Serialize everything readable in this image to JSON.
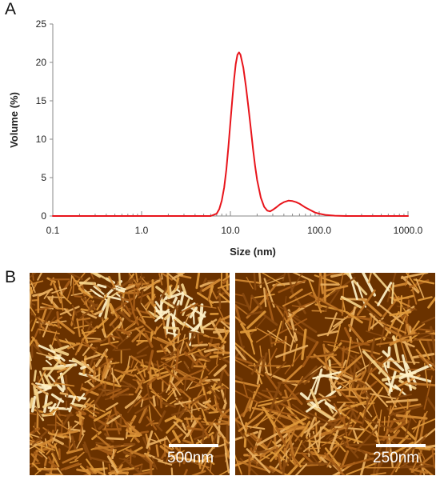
{
  "figure": {
    "panel_a_letter": "A",
    "panel_b_letter": "B"
  },
  "chart_data": {
    "type": "line",
    "title": "",
    "xlabel": "Size (nm)",
    "ylabel": "Volume (%)",
    "xscale": "log",
    "xlim": [
      0.1,
      1000.0
    ],
    "ylim": [
      0,
      25
    ],
    "xticks": [
      0.1,
      1.0,
      10.0,
      100.0,
      1000.0
    ],
    "xtick_labels": [
      "0.1",
      "1.0",
      "10.0",
      "100.0",
      "1000.0"
    ],
    "yticks": [
      0,
      5,
      10,
      15,
      20,
      25
    ],
    "ytick_labels": [
      "0",
      "5",
      "10",
      "15",
      "20",
      "25"
    ],
    "grid": false,
    "legend": "none",
    "series": [
      {
        "color": "#e8141b",
        "x": [
          0.1,
          1.0,
          6.0,
          7.0,
          7.5,
          8.0,
          8.5,
          9.0,
          9.5,
          10.0,
          10.5,
          11.0,
          11.5,
          12.0,
          12.5,
          13.0,
          14.0,
          15.0,
          16.0,
          17.0,
          18.0,
          19.0,
          20.0,
          22.0,
          24.0,
          26.0,
          28.0,
          30.0,
          33.0,
          36.0,
          40.0,
          45.0,
          50.0,
          55.0,
          60.0,
          70.0,
          80.0,
          90.0,
          100.0,
          120.0,
          150.0,
          200.0,
          1000.0
        ],
        "y": [
          0,
          0,
          0,
          0.3,
          0.9,
          2.0,
          3.7,
          6.0,
          9.0,
          12.2,
          15.2,
          17.8,
          19.8,
          21.0,
          21.3,
          21.0,
          19.3,
          16.8,
          14.0,
          11.3,
          8.7,
          6.5,
          4.7,
          2.4,
          1.2,
          0.7,
          0.6,
          0.8,
          1.15,
          1.5,
          1.8,
          2.0,
          1.95,
          1.8,
          1.6,
          1.1,
          0.75,
          0.45,
          0.3,
          0.12,
          0.04,
          0,
          0
        ]
      }
    ]
  },
  "afm_images": {
    "left": {
      "scale_bar_label": "500nm"
    },
    "right": {
      "scale_bar_label": "250nm"
    }
  },
  "colors": {
    "curve": "#e8141b",
    "afm_background": "#6a3200",
    "afm_fibril": "#e09a3a",
    "afm_bright": "#fff2c8"
  }
}
